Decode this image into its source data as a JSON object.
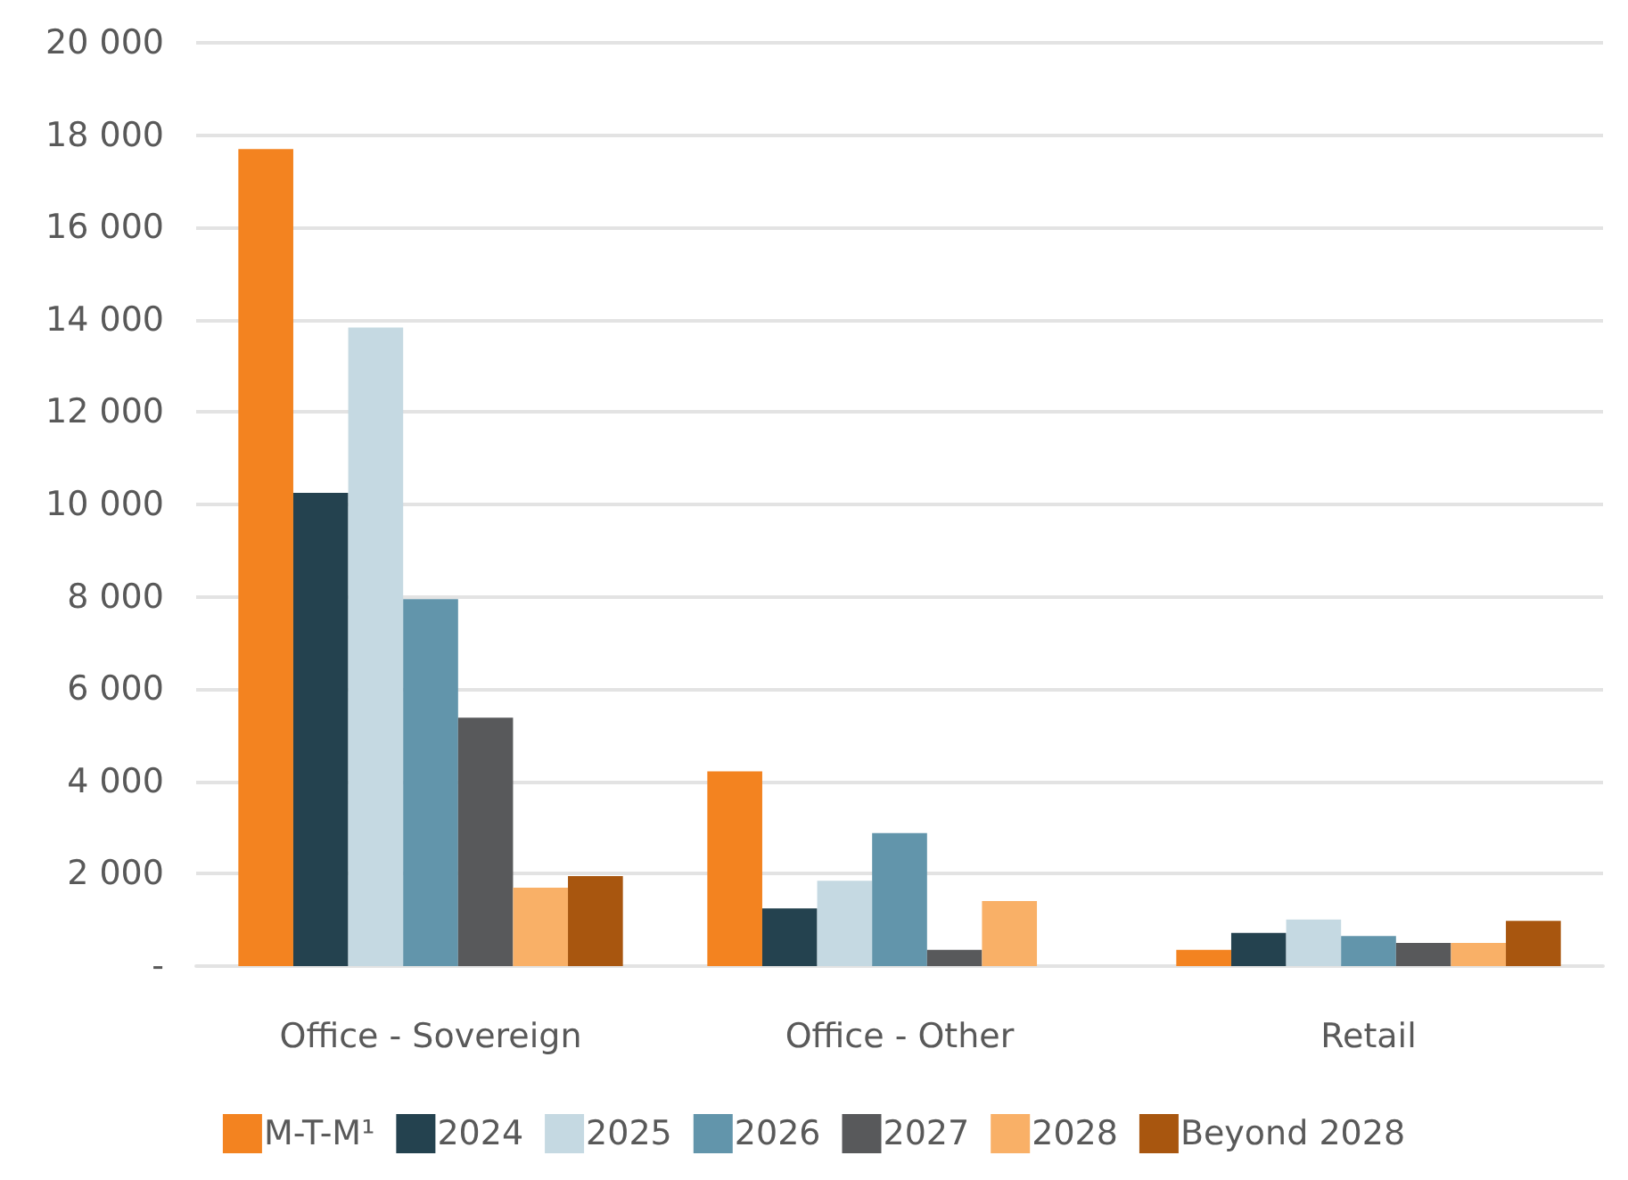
{
  "chart_data": {
    "type": "bar",
    "categories": [
      "Office - Sovereign",
      "Office - Other",
      "Retail"
    ],
    "series": [
      {
        "name": "M-T-M¹",
        "color": "#f38320",
        "values": [
          17700,
          4220,
          350
        ]
      },
      {
        "name": "2024",
        "color": "#24424f",
        "values": [
          10250,
          1250,
          720
        ]
      },
      {
        "name": "2025",
        "color": "#c5d9e2",
        "values": [
          13830,
          1850,
          1010
        ]
      },
      {
        "name": "2026",
        "color": "#6295ab",
        "values": [
          7950,
          2880,
          650
        ]
      },
      {
        "name": "2027",
        "color": "#58595b",
        "values": [
          5380,
          350,
          500
        ]
      },
      {
        "name": "2028",
        "color": "#f9b067",
        "values": [
          1700,
          1410,
          500
        ]
      },
      {
        "name": "Beyond 2028",
        "color": "#a8560f",
        "values": [
          1950,
          null,
          980
        ]
      }
    ],
    "ylim": [
      0,
      20000
    ],
    "yticks": [
      {
        "value": 0,
        "label": "-"
      },
      {
        "value": 2000,
        "label": "2 000"
      },
      {
        "value": 4000,
        "label": "4 000"
      },
      {
        "value": 6000,
        "label": "6 000"
      },
      {
        "value": 8000,
        "label": "8 000"
      },
      {
        "value": 10000,
        "label": "10 000"
      },
      {
        "value": 12000,
        "label": "12 000"
      },
      {
        "value": 14000,
        "label": "14 000"
      },
      {
        "value": 16000,
        "label": "16 000"
      },
      {
        "value": 18000,
        "label": "18 000"
      },
      {
        "value": 20000,
        "label": "20 000"
      }
    ],
    "grid": true,
    "legend": "bottom"
  }
}
